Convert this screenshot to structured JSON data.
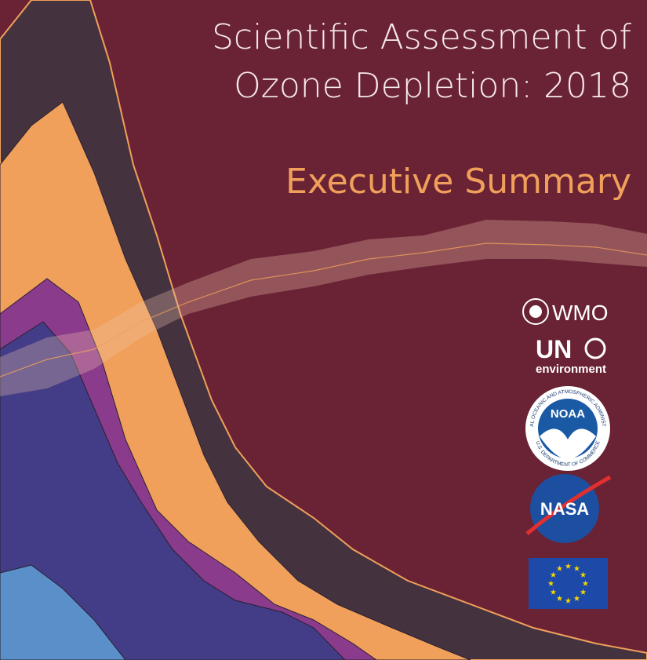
{
  "header": {
    "title_line1": "Scientific Assessment of",
    "title_line2": "Ozone Depletion: 2018",
    "subtitle": "Executive Summary"
  },
  "logos": {
    "wmo": "WMO",
    "un": "UN",
    "un_sub": "environment",
    "noaa": "NOAA",
    "noaa_ring_top": "NATIONAL OCEANIC AND ATMOSPHERIC ADMINISTRATION",
    "noaa_ring_bottom": "U.S. DEPARTMENT OF COMMERCE",
    "nasa": "NASA"
  }
}
